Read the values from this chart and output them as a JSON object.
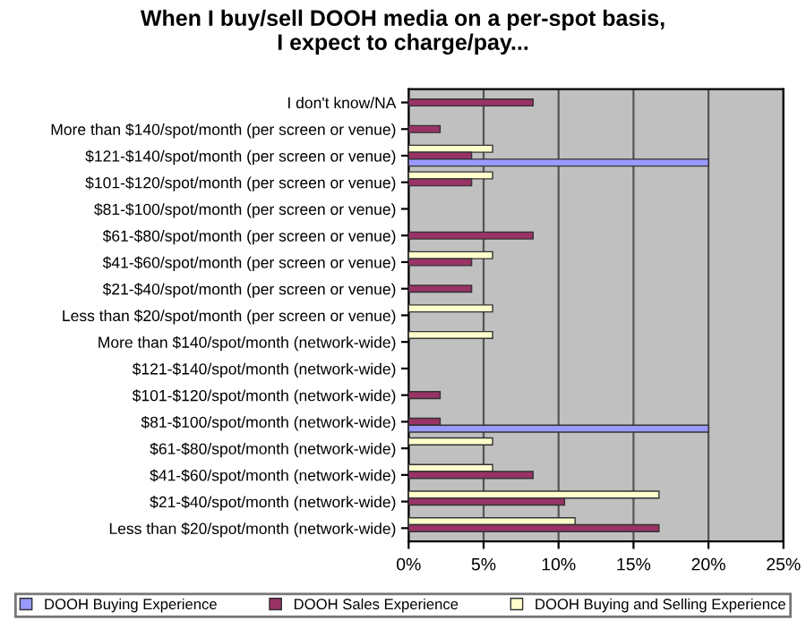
{
  "chart_data": {
    "type": "bar",
    "orientation": "horizontal",
    "title": "When I buy/sell DOOH media on a per-spot basis,\nI expect to charge/pay...",
    "categories": [
      "I don't know/NA",
      "More than $140/spot/month (per screen or venue)",
      "$121-$140/spot/month (per screen or venue)",
      "$101-$120/spot/month (per screen or venue)",
      "$81-$100/spot/month (per screen or venue)",
      "$61-$80/spot/month (per screen or venue)",
      "$41-$60/spot/month (per screen or venue)",
      "$21-$40/spot/month (per screen or venue)",
      "Less than $20/spot/month (per screen or venue)",
      "More than $140/spot/month (network-wide)",
      "$121-$140/spot/month (network-wide)",
      "$101-$120/spot/month (network-wide)",
      "$81-$100/spot/month (network-wide)",
      "$61-$80/spot/month (network-wide)",
      "$41-$60/spot/month (network-wide)",
      "$21-$40/spot/month (network-wide)",
      "Less than $20/spot/month (network-wide)"
    ],
    "series": [
      {
        "name": "DOOH Buying and Selling Experience",
        "color": "#ffffcc",
        "values": [
          null,
          null,
          5.6,
          5.6,
          null,
          null,
          5.6,
          null,
          5.6,
          5.6,
          null,
          null,
          null,
          5.6,
          5.6,
          16.7,
          11.1
        ]
      },
      {
        "name": "DOOH Sales Experience",
        "color": "#993366",
        "values": [
          8.3,
          2.1,
          4.2,
          4.2,
          null,
          8.3,
          4.2,
          4.2,
          null,
          null,
          null,
          2.1,
          2.1,
          null,
          8.3,
          10.4,
          16.7
        ]
      },
      {
        "name": "DOOH Buying Experience",
        "color": "#9999ff",
        "values": [
          null,
          null,
          20,
          null,
          null,
          null,
          null,
          null,
          null,
          null,
          null,
          null,
          20,
          null,
          null,
          null,
          null
        ]
      }
    ],
    "xlim": [
      0,
      25
    ],
    "xticks": [
      {
        "value": 0,
        "label": "0%"
      },
      {
        "value": 5,
        "label": "5%"
      },
      {
        "value": 10,
        "label": "10%"
      },
      {
        "value": 15,
        "label": "15%"
      },
      {
        "value": 20,
        "label": "20%"
      },
      {
        "value": 25,
        "label": "25%"
      }
    ],
    "grid": "x",
    "legend": "bottom"
  }
}
